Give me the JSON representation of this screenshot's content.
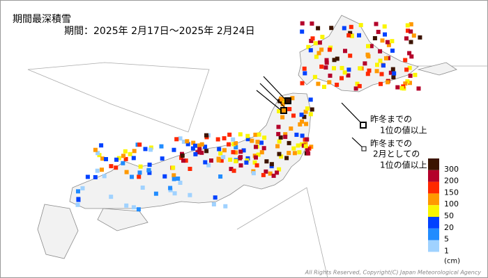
{
  "title": "期間最深積雪",
  "period": "期間：2025年 2月17日～2025年 2月24日",
  "annotations": [
    {
      "lines": [
        "昨冬までの",
        "1位の値以上"
      ]
    },
    {
      "lines": [
        "昨冬までの",
        "2月としての",
        "1位の値以上"
      ]
    }
  ],
  "legend": {
    "items": [
      {
        "label": "300",
        "color": "#3c1400"
      },
      {
        "label": "200",
        "color": "#b4002a"
      },
      {
        "label": "150",
        "color": "#ff2800"
      },
      {
        "label": "100",
        "color": "#ff9900"
      },
      {
        "label": "50",
        "color": "#faf500"
      },
      {
        "label": "20",
        "color": "#0041ff"
      },
      {
        "label": "5",
        "color": "#218cff"
      },
      {
        "label": "1",
        "color": "#a0d2ff"
      }
    ],
    "unit": "(cm)"
  },
  "copyright": "All Rights Reserved, Copyright(C) Japan Meteorological Agency"
}
